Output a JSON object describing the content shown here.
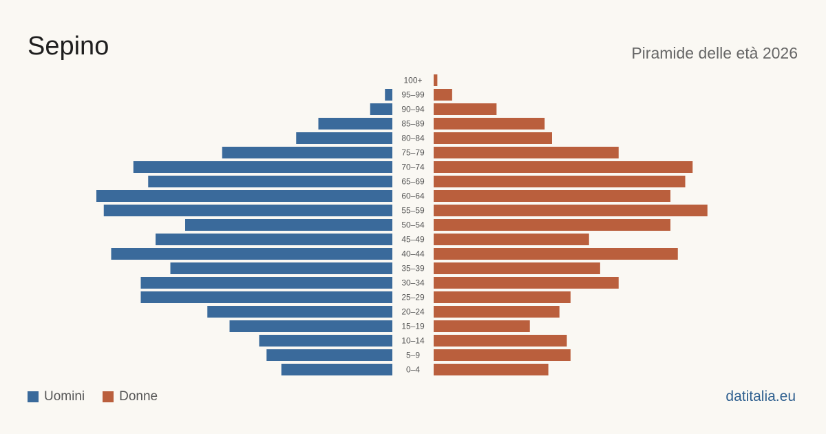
{
  "header": {
    "title": "Sepino",
    "subtitle": "Piramide delle età 2026"
  },
  "legend": {
    "men_label": "Uomini",
    "women_label": "Donne"
  },
  "brand": {
    "label": "datitalia.eu"
  },
  "colors": {
    "men": "#3a6a9b",
    "women": "#ba5f3d",
    "brand": "#2e5f8f"
  },
  "chart_data": {
    "type": "bar",
    "orientation": "horizontal-pyramid",
    "categories": [
      "100+",
      "95-99",
      "90-94",
      "85-89",
      "80-84",
      "75-79",
      "70-74",
      "65-69",
      "60-64",
      "55-59",
      "50-54",
      "45-49",
      "40-44",
      "35-39",
      "30-34",
      "25-29",
      "20-24",
      "15-19",
      "10-14",
      "5-9",
      "0-4"
    ],
    "series": [
      {
        "name": "Uomini",
        "values": [
          0,
          1,
          3,
          10,
          13,
          23,
          35,
          33,
          40,
          39,
          28,
          32,
          38,
          30,
          34,
          34,
          25,
          22,
          18,
          17,
          15
        ]
      },
      {
        "name": "Donne",
        "values": [
          0.5,
          2.5,
          8.5,
          15,
          16,
          25,
          35,
          34,
          32,
          37,
          32,
          21,
          33,
          22.5,
          25,
          18.5,
          17,
          13,
          18,
          18.5,
          15.5
        ]
      }
    ],
    "legend_position": "bottom-left",
    "grid": false
  }
}
